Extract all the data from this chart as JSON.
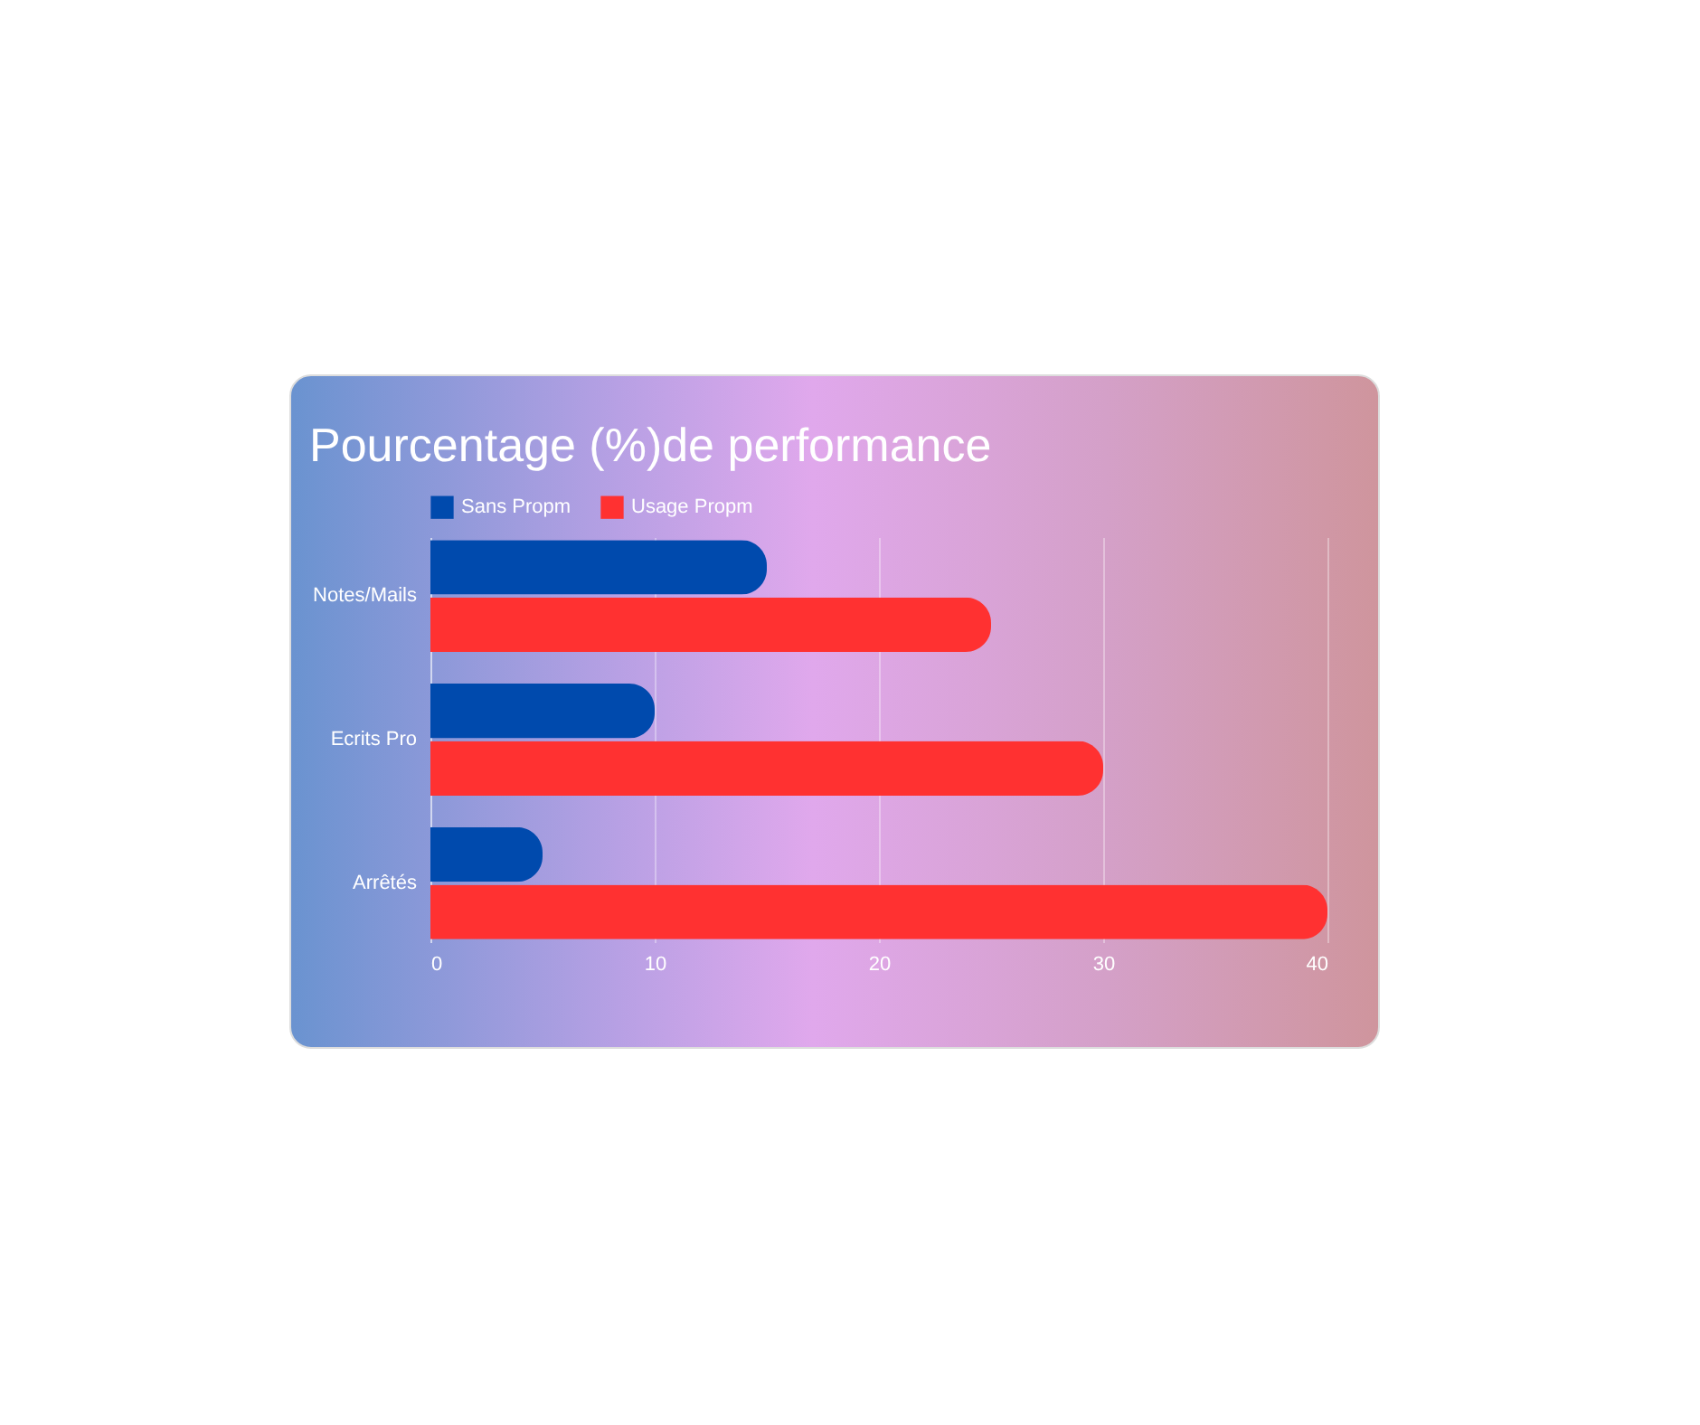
{
  "chart_data": {
    "type": "bar",
    "orientation": "horizontal",
    "title": "Pourcentage (%)de performance",
    "categories": [
      "Notes/Mails",
      "Ecrits Pro",
      "Arrêtés"
    ],
    "series": [
      {
        "name": "Sans Propm",
        "color": "#004aad",
        "values": [
          15,
          10,
          5
        ]
      },
      {
        "name": "Usage Propm",
        "color": "#ff3131",
        "values": [
          25,
          30,
          40
        ]
      }
    ],
    "xlim": [
      0,
      40
    ],
    "xticks": [
      0,
      10,
      20,
      30,
      40
    ],
    "grid": "x",
    "legend": "top"
  }
}
